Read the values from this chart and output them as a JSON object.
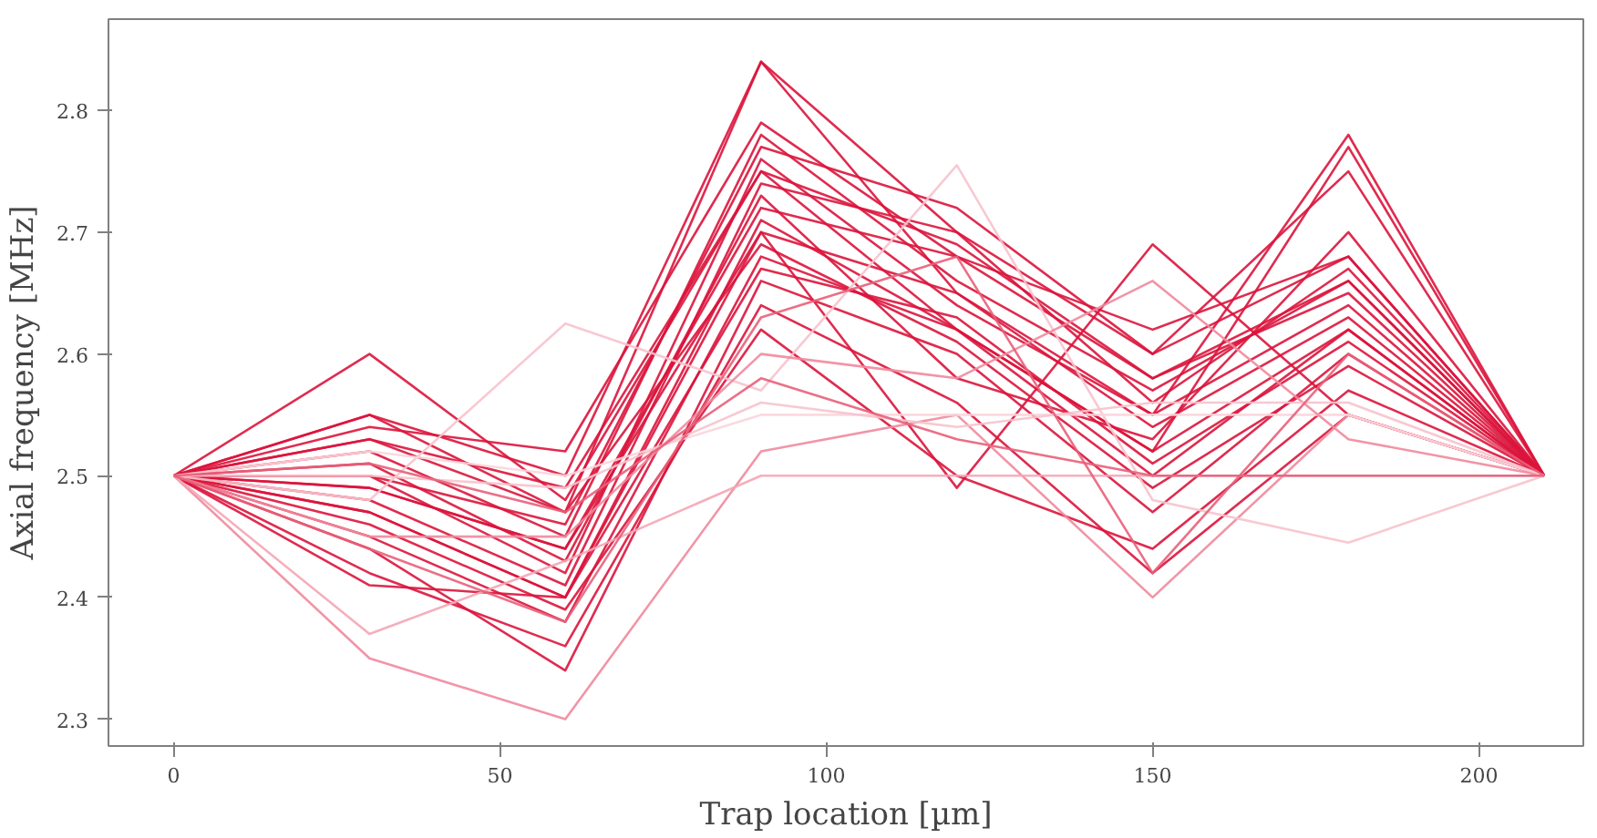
{
  "chart_data": {
    "type": "line",
    "xlabel": "Trap location [µm]",
    "ylabel": "Axial frequency [MHz]",
    "x": [
      0,
      30,
      60,
      90,
      120,
      150,
      180,
      210
    ],
    "xlim": [
      -10,
      216
    ],
    "xticks": [
      0,
      50,
      100,
      150,
      200
    ],
    "ylim": [
      2.278,
      2.875
    ],
    "yticks": [
      2.3,
      2.4,
      2.5,
      2.6,
      2.7,
      2.8
    ],
    "grid": false,
    "marker": "none",
    "line_style": "solid",
    "series": [
      {
        "color": "#dc143c",
        "values": [
          2.5,
          2.53,
          2.47,
          2.84,
          2.7,
          2.6,
          2.68,
          2.5
        ]
      },
      {
        "color": "#dc143c",
        "values": [
          2.5,
          2.55,
          2.5,
          2.84,
          2.65,
          2.55,
          2.78,
          2.5
        ]
      },
      {
        "color": "#dc143c",
        "values": [
          2.5,
          2.6,
          2.48,
          2.75,
          2.62,
          2.52,
          2.77,
          2.5
        ]
      },
      {
        "color": "#dc143c",
        "values": [
          2.5,
          2.49,
          2.44,
          2.72,
          2.68,
          2.58,
          2.65,
          2.5
        ]
      },
      {
        "color": "#dc143c",
        "values": [
          2.5,
          2.47,
          2.4,
          2.7,
          2.65,
          2.54,
          2.63,
          2.5
        ]
      },
      {
        "color": "#dc143c",
        "values": [
          2.5,
          2.45,
          2.38,
          2.68,
          2.62,
          2.5,
          2.62,
          2.5
        ]
      },
      {
        "color": "#dc143c",
        "values": [
          2.5,
          2.52,
          2.45,
          2.78,
          2.66,
          2.57,
          2.66,
          2.5
        ]
      },
      {
        "color": "#dc143c",
        "values": [
          2.5,
          2.5,
          2.42,
          2.76,
          2.64,
          2.55,
          2.64,
          2.5
        ]
      },
      {
        "color": "#dc143c",
        "values": [
          2.5,
          2.44,
          2.34,
          2.66,
          2.6,
          2.47,
          2.6,
          2.5
        ]
      },
      {
        "color": "#dc143c",
        "values": [
          2.5,
          2.48,
          2.41,
          2.74,
          2.7,
          2.56,
          2.67,
          2.5
        ]
      },
      {
        "color": "#dc143c",
        "values": [
          2.5,
          2.51,
          2.43,
          2.73,
          2.58,
          2.53,
          2.7,
          2.5
        ]
      },
      {
        "color": "#dc143c",
        "values": [
          2.5,
          2.46,
          2.39,
          2.62,
          2.5,
          2.44,
          2.57,
          2.5
        ]
      },
      {
        "color": "#dc143c",
        "values": [
          2.5,
          2.54,
          2.52,
          2.79,
          2.68,
          2.62,
          2.68,
          2.5
        ]
      },
      {
        "color": "#dc143c",
        "values": [
          2.5,
          2.42,
          2.36,
          2.64,
          2.56,
          2.42,
          2.55,
          2.5
        ]
      },
      {
        "color": "#dc143c",
        "values": [
          2.5,
          2.5,
          2.46,
          2.77,
          2.72,
          2.6,
          2.75,
          2.5
        ]
      },
      {
        "color": "#dc143c",
        "values": [
          2.5,
          2.49,
          2.44,
          2.7,
          2.49,
          2.69,
          2.55,
          2.5
        ]
      },
      {
        "color": "#dc143c",
        "values": [
          2.5,
          2.47,
          2.4,
          2.71,
          2.62,
          2.52,
          2.62,
          2.5
        ]
      },
      {
        "color": "#dc143c",
        "values": [
          2.5,
          2.41,
          2.4,
          2.67,
          2.63,
          2.51,
          2.61,
          2.5
        ]
      },
      {
        "color": "#dc143c",
        "values": [
          2.5,
          2.53,
          2.49,
          2.75,
          2.69,
          2.58,
          2.66,
          2.5
        ]
      },
      {
        "color": "#dc143c",
        "values": [
          2.5,
          2.55,
          2.47,
          2.69,
          2.61,
          2.49,
          2.59,
          2.5
        ]
      },
      {
        "color": "#f0899d",
        "values": [
          2.5,
          2.35,
          2.3,
          2.52,
          2.55,
          2.4,
          2.55,
          2.5
        ]
      },
      {
        "color": "#f7c3cd",
        "values": [
          2.5,
          2.48,
          2.625,
          2.57,
          2.755,
          2.48,
          2.445,
          2.5
        ]
      },
      {
        "color": "#f4a6b5",
        "values": [
          2.5,
          2.37,
          2.43,
          2.5,
          2.5,
          2.5,
          2.5,
          2.5
        ]
      },
      {
        "color": "#fbd5dc",
        "values": [
          2.5,
          2.52,
          2.5,
          2.55,
          2.55,
          2.55,
          2.55,
          2.5
        ]
      },
      {
        "color": "#f0899d",
        "values": [
          2.5,
          2.45,
          2.45,
          2.6,
          2.58,
          2.66,
          2.53,
          2.5
        ]
      },
      {
        "color": "#f7c3cd",
        "values": [
          2.5,
          2.5,
          2.49,
          2.56,
          2.54,
          2.56,
          2.56,
          2.5
        ]
      },
      {
        "color": "#e8607a",
        "values": [
          2.5,
          2.51,
          2.47,
          2.58,
          2.53,
          2.5,
          2.5,
          2.5
        ]
      },
      {
        "color": "#e8607a",
        "values": [
          2.5,
          2.44,
          2.38,
          2.63,
          2.68,
          2.42,
          2.6,
          2.5
        ]
      }
    ]
  }
}
